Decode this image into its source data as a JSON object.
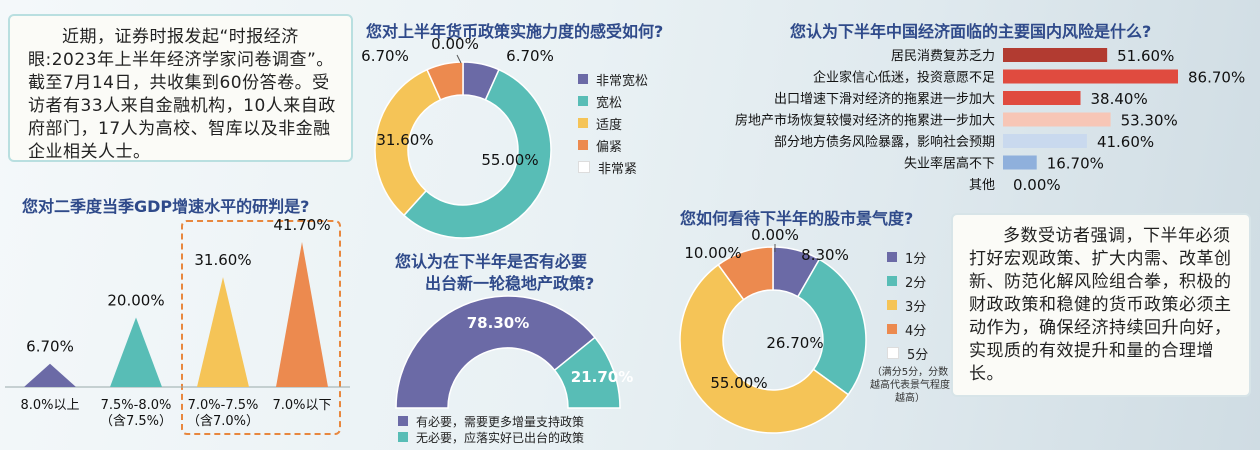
{
  "colors": {
    "purple": "#6b6aa6",
    "teal": "#58bdb6",
    "yellow": "#f5c457",
    "orange": "#ec8a4f",
    "white": "#ffffff",
    "dark_red": "#b23b31",
    "red": "#e04b3f",
    "salmon": "#ef9a84",
    "pink": "#f7c6b6",
    "light_blue": "#c9d9ee",
    "blue": "#8fb0dc",
    "title": "#2f4a8a"
  },
  "intro": {
    "text": "近期，证券时报发起“时报经济眼:2023年上半年经济学家问卷调查”。截至7月14日，共收集到60份答卷。受访者有33人来自金融机构，10人来自政府部门，17人为高校、智库以及非金融企业相关人士。"
  },
  "conclusion": {
    "text": "多数受访者强调，下半年必须打好宏观政策、扩大内需、改革创新、防范化解风险组合拳，积极的财政政策和稳健的货币政策必须主动作为，确保经济持续回升向好，实现质的有效提升和量的合理增长。"
  },
  "chart_data": [
    {
      "id": "gdp",
      "type": "bar",
      "title": "您对二季度当季GDP增速水平的研判是?",
      "categories": [
        "8.0%以上",
        "7.5%-8.0%",
        "7.0%-7.5%",
        "7.0%以下"
      ],
      "category_notes": [
        "",
        "（含7.5%）",
        "（含7.0%）",
        ""
      ],
      "values": [
        6.7,
        20.0,
        31.6,
        41.7
      ],
      "value_labels": [
        "6.70%",
        "20.00%",
        "31.60%",
        "41.70%"
      ],
      "colors": [
        "#6b6aa6",
        "#58bdb6",
        "#f5c457",
        "#ec8a4f"
      ],
      "highlight": [
        "7.0%-7.5%",
        "7.0%以下"
      ]
    },
    {
      "id": "monetary",
      "type": "pie",
      "title": "您对上半年货币政策实施力度的感受如何?",
      "labels": [
        "非常宽松",
        "宽松",
        "适度",
        "偏紧",
        "非常紧"
      ],
      "values": [
        6.7,
        55.0,
        31.6,
        6.7,
        0.0
      ],
      "value_labels": [
        "6.70%",
        "55.00%",
        "31.60%",
        "6.70%",
        "0.00%"
      ],
      "colors": [
        "#6b6aa6",
        "#58bdb6",
        "#f5c457",
        "#ec8a4f",
        "#ffffff"
      ]
    },
    {
      "id": "property",
      "type": "pie",
      "title": "您认为在下半年是否有必要出台新一轮稳地产政策?",
      "labels": [
        "有必要，需要更多增量支持政策",
        "无必要，应落实好已出台的政策"
      ],
      "values": [
        78.3,
        21.7
      ],
      "value_labels": [
        "78.30%",
        "21.70%"
      ],
      "colors": [
        "#6b6aa6",
        "#58bdb6"
      ]
    },
    {
      "id": "risk",
      "type": "bar",
      "orientation": "horizontal",
      "title": "您认为下半年中国经济面临的主要国内风险是什么?",
      "categories": [
        "居民消费复苏乏力",
        "企业家信心低迷，投资意愿不足",
        "出口增速下滑对经济的拖累进一步加大",
        "房地产市场恢复较慢对经济的拖累进一步加大",
        "部分地方债务风险暴露，影响社会预期",
        "失业率居高不下",
        "其他"
      ],
      "values": [
        51.6,
        86.7,
        38.4,
        53.3,
        41.6,
        16.7,
        0.0
      ],
      "value_labels": [
        "51.60%",
        "86.70%",
        "38.40%",
        "53.30%",
        "41.60%",
        "16.70%",
        "0.00%"
      ],
      "colors": [
        "#b23b31",
        "#e04b3f",
        "#e04b3f",
        "#f7c6b6",
        "#c9d9ee",
        "#8fb0dc",
        "#ffffff"
      ]
    },
    {
      "id": "stock",
      "type": "pie",
      "title": "您如何看待下半年的股市景气度?",
      "labels": [
        "1分",
        "2分",
        "3分",
        "4分",
        "5分"
      ],
      "values": [
        8.3,
        26.7,
        55.0,
        10.0,
        0.0
      ],
      "value_labels": [
        "8.30%",
        "26.70%",
        "55.00%",
        "10.00%",
        "0.00%"
      ],
      "colors": [
        "#6b6aa6",
        "#58bdb6",
        "#f5c457",
        "#ec8a4f",
        "#ffffff"
      ],
      "note": "（满分5分，分数越高代表景气程度越高）"
    }
  ]
}
